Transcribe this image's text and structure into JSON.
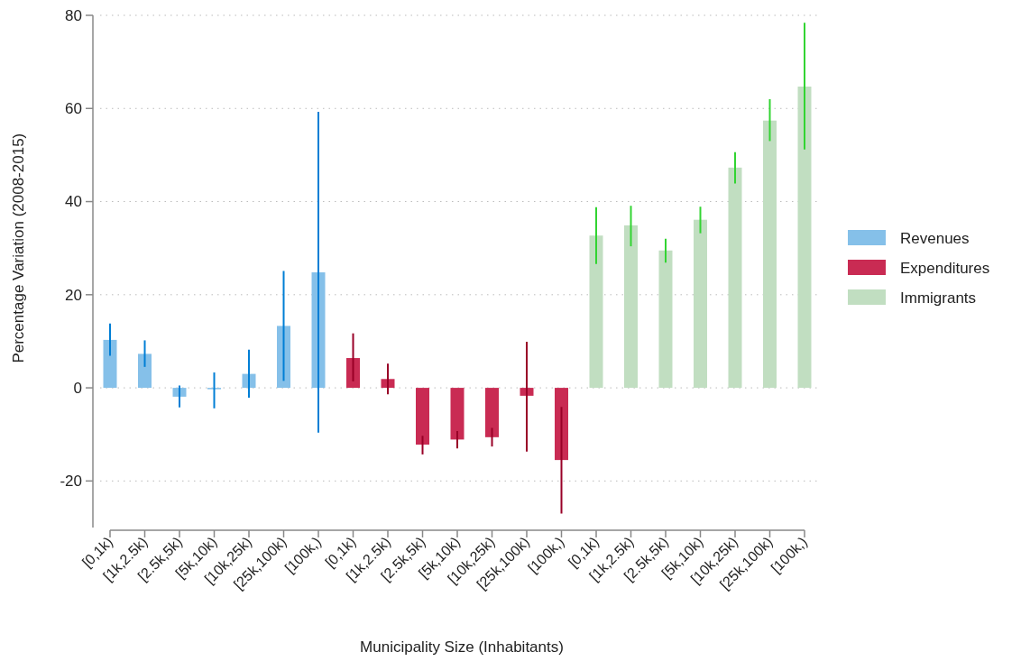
{
  "chart_data": {
    "type": "bar",
    "xlabel": "Municipality Size (Inhabitants)",
    "ylabel": "Percentage Variation (2008-2015)",
    "categories": [
      "[0,1k)",
      "[1k,2.5k)",
      "[2.5k,5k)",
      "[5k,10k)",
      "[10k,25k)",
      "[25k,100k)",
      "[100k,)",
      "[0,1k)",
      "[1k,2.5k)",
      "[2.5k,5k)",
      "[5k,10k)",
      "[10k,25k)",
      "[25k,100k)",
      "[100k,)",
      "[0,1k)",
      "[1k,2.5k)",
      "[2.5k,5k)",
      "[5k,10k)",
      "[10k,25k)",
      "[25k,100k)",
      "[100k,)"
    ],
    "series": [
      {
        "name": "Revenues",
        "color": "#85c0e9",
        "values": [
          10.3,
          7.3,
          -1.9,
          -0.3,
          3.0,
          13.3,
          24.8,
          null,
          null,
          null,
          null,
          null,
          null,
          null,
          null,
          null,
          null,
          null,
          null,
          null,
          null
        ],
        "errors": [
          [
            6.9,
            13.8
          ],
          [
            4.5,
            10.2
          ],
          [
            -4.2,
            0.5
          ],
          [
            -4.4,
            3.3
          ],
          [
            -2.1,
            8.2
          ],
          [
            1.5,
            25.1
          ],
          [
            -9.6,
            59.3
          ],
          null,
          null,
          null,
          null,
          null,
          null,
          null,
          null,
          null,
          null,
          null,
          null,
          null,
          null
        ]
      },
      {
        "name": "Expenditures",
        "color": "#c92b53",
        "values": [
          null,
          null,
          null,
          null,
          null,
          null,
          null,
          6.4,
          1.9,
          -12.2,
          -11.1,
          -10.6,
          -1.7,
          -15.5,
          null,
          null,
          null,
          null,
          null,
          null,
          null
        ],
        "errors": [
          null,
          null,
          null,
          null,
          null,
          null,
          null,
          [
            1.4,
            11.7
          ],
          [
            -1.4,
            5.2
          ],
          [
            -14.3,
            -10.3
          ],
          [
            -13.0,
            -9.3
          ],
          [
            -12.6,
            -8.6
          ],
          [
            -13.7,
            9.9
          ],
          [
            -27.0,
            -4.1
          ],
          null,
          null,
          null,
          null,
          null,
          null,
          null
        ]
      },
      {
        "name": "Immigrants",
        "color": "#c1dec1",
        "values": [
          null,
          null,
          null,
          null,
          null,
          null,
          null,
          null,
          null,
          null,
          null,
          null,
          null,
          null,
          32.7,
          34.9,
          29.5,
          36.1,
          47.3,
          57.4,
          64.7
        ],
        "errors": [
          null,
          null,
          null,
          null,
          null,
          null,
          null,
          null,
          null,
          null,
          null,
          null,
          null,
          null,
          [
            26.6,
            38.8
          ],
          [
            30.4,
            39.1
          ],
          [
            26.9,
            32.0
          ],
          [
            33.2,
            38.9
          ],
          [
            43.9,
            50.6
          ],
          [
            53.0,
            62.0
          ],
          [
            51.2,
            78.4
          ]
        ]
      }
    ],
    "ylim": [
      -30,
      80
    ],
    "yticks": [
      -20,
      0,
      20,
      40,
      60,
      80
    ],
    "grid": "y",
    "legend": "right"
  }
}
